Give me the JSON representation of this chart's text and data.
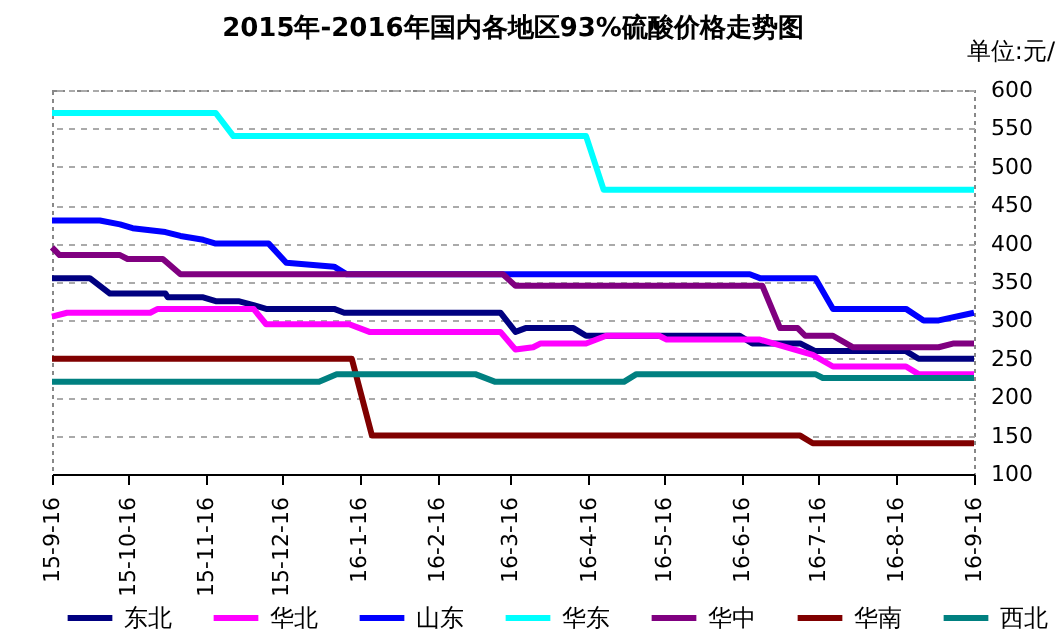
{
  "chart_data": {
    "type": "line",
    "title": "2015年-2016年国内各地区93%硫酸价格走势图",
    "ylabel": "单位:元/",
    "xlim": [
      "2015-09-16",
      "2016-09-16"
    ],
    "xticks": [
      {
        "value": "2015-09-16",
        "label": "15-9-16"
      },
      {
        "value": "2015-10-16",
        "label": "15-10-16"
      },
      {
        "value": "2015-11-16",
        "label": "15-11-16"
      },
      {
        "value": "2015-12-16",
        "label": "15-12-16"
      },
      {
        "value": "2016-01-16",
        "label": "16-1-16"
      },
      {
        "value": "2016-02-16",
        "label": "16-2-16"
      },
      {
        "value": "2016-03-16",
        "label": "16-3-16"
      },
      {
        "value": "2016-04-16",
        "label": "16-4-16"
      },
      {
        "value": "2016-05-16",
        "label": "16-5-16"
      },
      {
        "value": "2016-06-16",
        "label": "16-6-16"
      },
      {
        "value": "2016-07-16",
        "label": "16-7-16"
      },
      {
        "value": "2016-08-16",
        "label": "16-8-16"
      },
      {
        "value": "2016-09-16",
        "label": "16-9-16"
      }
    ],
    "ylim": [
      100,
      600
    ],
    "yticks": [
      100,
      150,
      200,
      250,
      300,
      350,
      400,
      450,
      500,
      550,
      600
    ],
    "grid": "y",
    "legend": "bottom",
    "line_style": "solid",
    "marker": "none",
    "series": [
      {
        "name": "东北",
        "color": "#000080",
        "x": [
          "2015-09-16",
          "2015-10-01",
          "2015-10-09",
          "2015-10-31",
          "2015-11-01",
          "2015-11-15",
          "2015-11-20",
          "2015-11-29",
          "2015-12-05",
          "2015-12-10",
          "2016-01-06",
          "2016-01-10",
          "2016-03-12",
          "2016-03-18",
          "2016-03-22",
          "2016-04-10",
          "2016-04-15",
          "2016-06-15",
          "2016-06-20",
          "2016-07-09",
          "2016-07-15",
          "2016-08-20",
          "2016-08-25",
          "2016-09-16"
        ],
        "values": [
          355,
          355,
          335,
          335,
          330,
          330,
          325,
          325,
          320,
          315,
          315,
          310,
          310,
          285,
          290,
          290,
          280,
          280,
          270,
          270,
          260,
          260,
          250,
          250
        ]
      },
      {
        "name": "华北",
        "color": "#ff00ff",
        "x": [
          "2015-09-16",
          "2015-09-22",
          "2015-10-25",
          "2015-10-28",
          "2015-12-05",
          "2015-12-10",
          "2016-01-12",
          "2016-01-20",
          "2016-03-12",
          "2016-03-18",
          "2016-03-25",
          "2016-03-28",
          "2016-04-15",
          "2016-04-23",
          "2016-05-14",
          "2016-05-17",
          "2016-06-23",
          "2016-07-14",
          "2016-07-22",
          "2016-08-20",
          "2016-08-25",
          "2016-09-16"
        ],
        "values": [
          305,
          310,
          310,
          315,
          315,
          295,
          295,
          285,
          285,
          262,
          265,
          270,
          270,
          280,
          280,
          275,
          275,
          255,
          240,
          240,
          230,
          230
        ]
      },
      {
        "name": "山东",
        "color": "#0000ff",
        "x": [
          "2015-09-16",
          "2015-10-05",
          "2015-10-13",
          "2015-10-18",
          "2015-10-31",
          "2015-11-06",
          "2015-11-15",
          "2015-11-20",
          "2015-12-11",
          "2015-12-18",
          "2016-01-06",
          "2016-01-11",
          "2016-06-19",
          "2016-06-23",
          "2016-07-15",
          "2016-07-22",
          "2016-08-20",
          "2016-08-27",
          "2016-09-02",
          "2016-09-16"
        ],
        "values": [
          430,
          430,
          425,
          420,
          415,
          410,
          405,
          400,
          400,
          375,
          370,
          360,
          360,
          355,
          355,
          315,
          315,
          300,
          300,
          310
        ]
      },
      {
        "name": "华东",
        "color": "#00ffff",
        "x": [
          "2015-09-16",
          "2015-11-20",
          "2015-11-27",
          "2016-04-15",
          "2016-04-22",
          "2016-09-16"
        ],
        "values": [
          570,
          570,
          540,
          540,
          470,
          470
        ]
      },
      {
        "name": "华中",
        "color": "#800080",
        "x": [
          "2015-09-16",
          "2015-09-19",
          "2015-10-13",
          "2015-10-16",
          "2015-10-30",
          "2015-11-06",
          "2016-03-13",
          "2016-03-18",
          "2016-06-24",
          "2016-07-01",
          "2016-07-08",
          "2016-07-11",
          "2016-07-22",
          "2016-07-30",
          "2016-09-02",
          "2016-09-08",
          "2016-09-16"
        ],
        "values": [
          395,
          385,
          385,
          380,
          380,
          360,
          360,
          345,
          345,
          290,
          290,
          280,
          280,
          265,
          265,
          270,
          270
        ]
      },
      {
        "name": "华南",
        "color": "#800000",
        "x": [
          "2015-09-16",
          "2016-01-13",
          "2016-01-21",
          "2016-07-09",
          "2016-07-14",
          "2016-09-16"
        ],
        "values": [
          250,
          250,
          150,
          150,
          140,
          140
        ]
      },
      {
        "name": "西北",
        "color": "#008080",
        "x": [
          "2015-09-16",
          "2015-12-31",
          "2016-01-07",
          "2016-03-02",
          "2016-03-10",
          "2016-04-30",
          "2016-05-05",
          "2016-07-15",
          "2016-07-18",
          "2016-09-16"
        ],
        "values": [
          220,
          220,
          230,
          230,
          220,
          220,
          230,
          230,
          225,
          225
        ]
      }
    ]
  }
}
